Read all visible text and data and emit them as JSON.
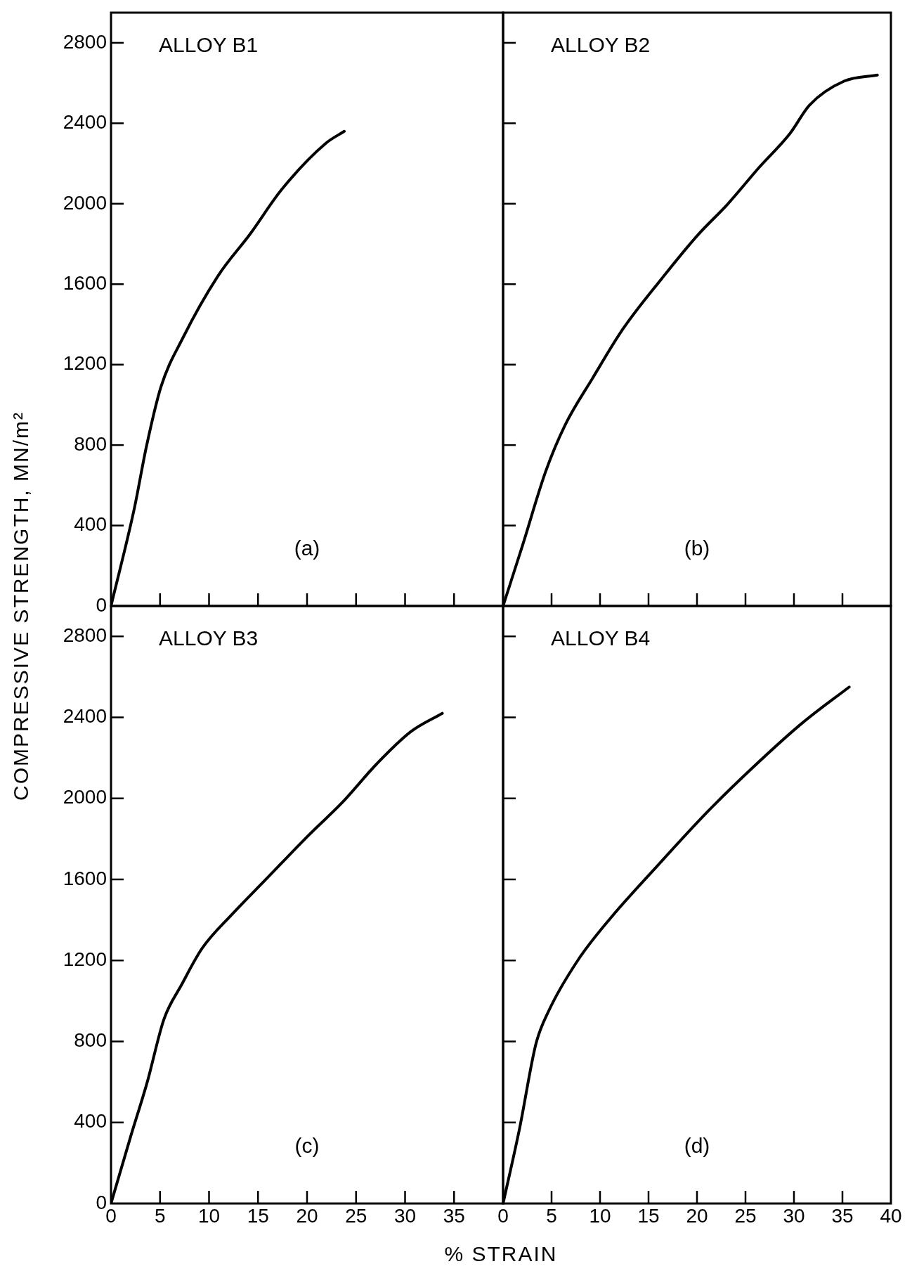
{
  "chart_data": [
    {
      "type": "line",
      "title": "ALLOY B1",
      "annotations": [
        "(a)"
      ],
      "ylabel": "COMPRESSIVE STRENGTH, MN/m²",
      "color": "#000000",
      "marker": "none",
      "tick_labels": "y",
      "x": [
        0,
        2.4,
        3.6,
        5.1,
        7.3,
        10.9,
        14.2,
        17.4,
        21.9,
        23.8
      ],
      "values": [
        0,
        490,
        790,
        1090,
        1330,
        1640,
        1850,
        2070,
        2300,
        2360
      ],
      "xlim": [
        0,
        40
      ],
      "xticks": [
        0,
        5,
        10,
        15,
        20,
        25,
        30,
        35
      ],
      "ylim": [
        0,
        2950
      ],
      "yticks": [
        0,
        400,
        800,
        1200,
        1600,
        2000,
        2400,
        2800
      ]
    },
    {
      "type": "line",
      "title": "ALLOY B2",
      "annotations": [
        "(b)"
      ],
      "color": "#000000",
      "marker": "none",
      "tick_labels": false,
      "x": [
        0,
        2,
        4.4,
        6.4,
        9.2,
        12.4,
        16.4,
        20,
        23.2,
        26.4,
        29.6,
        31.6,
        35.2,
        38.6
      ],
      "values": [
        0,
        300,
        670,
        900,
        1130,
        1380,
        1630,
        1840,
        2000,
        2180,
        2350,
        2490,
        2610,
        2640
      ],
      "xlim": [
        0,
        40
      ],
      "xticks": [
        0,
        5,
        10,
        15,
        20,
        25,
        30,
        35
      ],
      "ylim": [
        0,
        2950
      ],
      "yticks": [
        0,
        400,
        800,
        1200,
        1600,
        2000,
        2400,
        2800
      ]
    },
    {
      "type": "line",
      "title": "ALLOY B3",
      "annotations": [
        "(c)"
      ],
      "xlabel": "% STRAIN",
      "color": "#000000",
      "marker": "none",
      "x": [
        0,
        2,
        3.7,
        5.4,
        7.2,
        9.3,
        12.4,
        15.8,
        20.2,
        23.6,
        27.1,
        30.6,
        33.8
      ],
      "values": [
        0,
        330,
        600,
        910,
        1080,
        1260,
        1430,
        1600,
        1820,
        1980,
        2170,
        2330,
        2420
      ],
      "xlim": [
        0,
        40
      ],
      "xticks": [
        0,
        5,
        10,
        15,
        20,
        25,
        30,
        35
      ],
      "ylim": [
        0,
        2950
      ],
      "yticks": [
        0,
        400,
        800,
        1200,
        1600,
        2000,
        2400,
        2800
      ]
    },
    {
      "type": "line",
      "title": "ALLOY B4",
      "annotations": [
        "(d)"
      ],
      "color": "#000000",
      "marker": "none",
      "tick_labels": "x",
      "x": [
        0,
        1.7,
        3.4,
        4.7,
        7.7,
        11.1,
        15.4,
        21,
        25.7,
        30.8,
        35.7
      ],
      "values": [
        0,
        370,
        790,
        950,
        1200,
        1410,
        1640,
        1930,
        2150,
        2370,
        2550
      ],
      "xlim": [
        0,
        40
      ],
      "xticks": [
        0,
        5,
        10,
        15,
        20,
        25,
        30,
        35,
        40
      ],
      "ylim": [
        0,
        2950
      ],
      "yticks": [
        0,
        400,
        800,
        1200,
        1600,
        2000,
        2400,
        2800
      ]
    }
  ]
}
